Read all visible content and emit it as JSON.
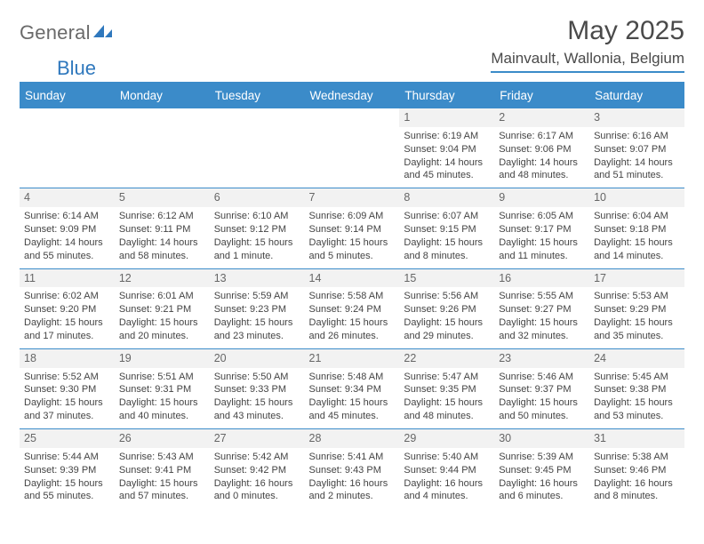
{
  "branding": {
    "logo_part1": "General",
    "logo_part2": "Blue",
    "logo_part1_color": "#6a6a6a",
    "logo_part2_color": "#2f78bd",
    "logo_icon_color": "#2f78bd"
  },
  "colors": {
    "header_bg": "#3b8bc9",
    "header_text": "#ffffff",
    "rule": "#3b8bc9",
    "cell_border": "#3b8bc9",
    "daynum_bg": "#f2f2f2",
    "daynum_text": "#666666",
    "body_text": "#444444"
  },
  "title": {
    "month": "May 2025",
    "location": "Mainvault, Wallonia, Belgium"
  },
  "weekdays": [
    "Sunday",
    "Monday",
    "Tuesday",
    "Wednesday",
    "Thursday",
    "Friday",
    "Saturday"
  ],
  "weeks": [
    [
      null,
      null,
      null,
      null,
      {
        "n": "1",
        "sunrise": "6:19 AM",
        "sunset": "9:04 PM",
        "daylight": "14 hours and 45 minutes."
      },
      {
        "n": "2",
        "sunrise": "6:17 AM",
        "sunset": "9:06 PM",
        "daylight": "14 hours and 48 minutes."
      },
      {
        "n": "3",
        "sunrise": "6:16 AM",
        "sunset": "9:07 PM",
        "daylight": "14 hours and 51 minutes."
      }
    ],
    [
      {
        "n": "4",
        "sunrise": "6:14 AM",
        "sunset": "9:09 PM",
        "daylight": "14 hours and 55 minutes."
      },
      {
        "n": "5",
        "sunrise": "6:12 AM",
        "sunset": "9:11 PM",
        "daylight": "14 hours and 58 minutes."
      },
      {
        "n": "6",
        "sunrise": "6:10 AM",
        "sunset": "9:12 PM",
        "daylight": "15 hours and 1 minute."
      },
      {
        "n": "7",
        "sunrise": "6:09 AM",
        "sunset": "9:14 PM",
        "daylight": "15 hours and 5 minutes."
      },
      {
        "n": "8",
        "sunrise": "6:07 AM",
        "sunset": "9:15 PM",
        "daylight": "15 hours and 8 minutes."
      },
      {
        "n": "9",
        "sunrise": "6:05 AM",
        "sunset": "9:17 PM",
        "daylight": "15 hours and 11 minutes."
      },
      {
        "n": "10",
        "sunrise": "6:04 AM",
        "sunset": "9:18 PM",
        "daylight": "15 hours and 14 minutes."
      }
    ],
    [
      {
        "n": "11",
        "sunrise": "6:02 AM",
        "sunset": "9:20 PM",
        "daylight": "15 hours and 17 minutes."
      },
      {
        "n": "12",
        "sunrise": "6:01 AM",
        "sunset": "9:21 PM",
        "daylight": "15 hours and 20 minutes."
      },
      {
        "n": "13",
        "sunrise": "5:59 AM",
        "sunset": "9:23 PM",
        "daylight": "15 hours and 23 minutes."
      },
      {
        "n": "14",
        "sunrise": "5:58 AM",
        "sunset": "9:24 PM",
        "daylight": "15 hours and 26 minutes."
      },
      {
        "n": "15",
        "sunrise": "5:56 AM",
        "sunset": "9:26 PM",
        "daylight": "15 hours and 29 minutes."
      },
      {
        "n": "16",
        "sunrise": "5:55 AM",
        "sunset": "9:27 PM",
        "daylight": "15 hours and 32 minutes."
      },
      {
        "n": "17",
        "sunrise": "5:53 AM",
        "sunset": "9:29 PM",
        "daylight": "15 hours and 35 minutes."
      }
    ],
    [
      {
        "n": "18",
        "sunrise": "5:52 AM",
        "sunset": "9:30 PM",
        "daylight": "15 hours and 37 minutes."
      },
      {
        "n": "19",
        "sunrise": "5:51 AM",
        "sunset": "9:31 PM",
        "daylight": "15 hours and 40 minutes."
      },
      {
        "n": "20",
        "sunrise": "5:50 AM",
        "sunset": "9:33 PM",
        "daylight": "15 hours and 43 minutes."
      },
      {
        "n": "21",
        "sunrise": "5:48 AM",
        "sunset": "9:34 PM",
        "daylight": "15 hours and 45 minutes."
      },
      {
        "n": "22",
        "sunrise": "5:47 AM",
        "sunset": "9:35 PM",
        "daylight": "15 hours and 48 minutes."
      },
      {
        "n": "23",
        "sunrise": "5:46 AM",
        "sunset": "9:37 PM",
        "daylight": "15 hours and 50 minutes."
      },
      {
        "n": "24",
        "sunrise": "5:45 AM",
        "sunset": "9:38 PM",
        "daylight": "15 hours and 53 minutes."
      }
    ],
    [
      {
        "n": "25",
        "sunrise": "5:44 AM",
        "sunset": "9:39 PM",
        "daylight": "15 hours and 55 minutes."
      },
      {
        "n": "26",
        "sunrise": "5:43 AM",
        "sunset": "9:41 PM",
        "daylight": "15 hours and 57 minutes."
      },
      {
        "n": "27",
        "sunrise": "5:42 AM",
        "sunset": "9:42 PM",
        "daylight": "16 hours and 0 minutes."
      },
      {
        "n": "28",
        "sunrise": "5:41 AM",
        "sunset": "9:43 PM",
        "daylight": "16 hours and 2 minutes."
      },
      {
        "n": "29",
        "sunrise": "5:40 AM",
        "sunset": "9:44 PM",
        "daylight": "16 hours and 4 minutes."
      },
      {
        "n": "30",
        "sunrise": "5:39 AM",
        "sunset": "9:45 PM",
        "daylight": "16 hours and 6 minutes."
      },
      {
        "n": "31",
        "sunrise": "5:38 AM",
        "sunset": "9:46 PM",
        "daylight": "16 hours and 8 minutes."
      }
    ]
  ],
  "labels": {
    "sunrise": "Sunrise: ",
    "sunset": "Sunset: ",
    "daylight": "Daylight: "
  }
}
